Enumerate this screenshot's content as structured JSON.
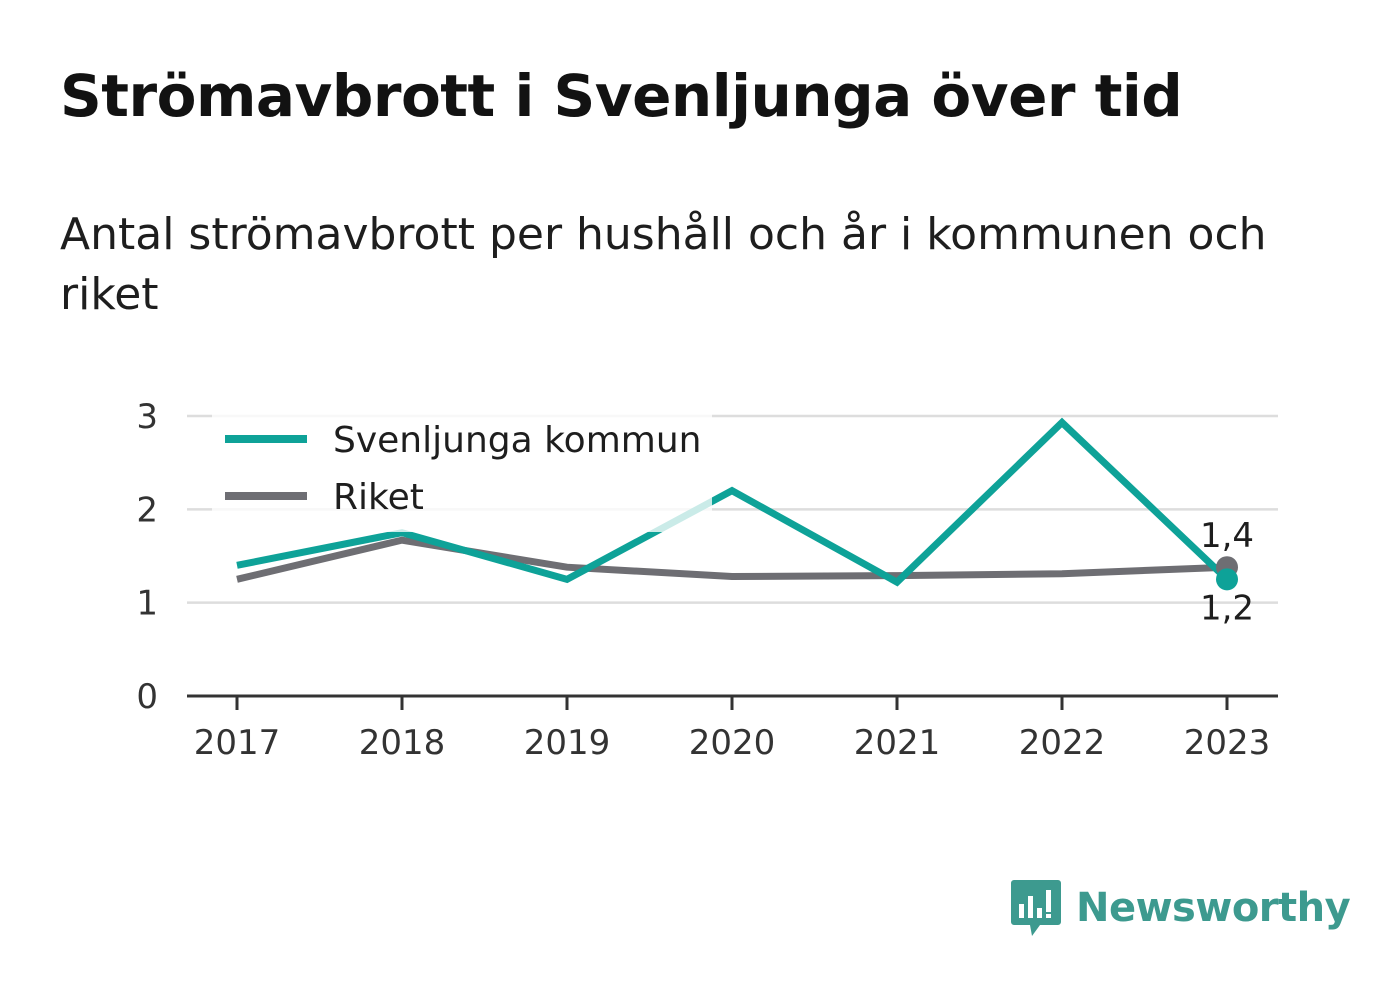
{
  "title": "Strömavbrott i Svenljunga över tid",
  "subtitle": "Antal strömavbrott per hushåll och år i kommunen och riket",
  "brand": "Newsworthy",
  "chart_data": {
    "type": "line",
    "x": [
      "2017",
      "2018",
      "2019",
      "2020",
      "2021",
      "2022",
      "2023"
    ],
    "series": [
      {
        "name": "Svenljunga kommun",
        "color": "#0ea298",
        "values": [
          1.4,
          1.75,
          1.25,
          2.2,
          1.22,
          2.93,
          1.25
        ],
        "end_label": "1,2"
      },
      {
        "name": "Riket",
        "color": "#6e6e73",
        "values": [
          1.25,
          1.67,
          1.38,
          1.28,
          1.29,
          1.31,
          1.38
        ],
        "end_label": "1,4"
      }
    ],
    "yticks": [
      "0",
      "1",
      "2",
      "3"
    ],
    "ylim": [
      0,
      3
    ],
    "grid": true,
    "legend_position": "top-left"
  }
}
